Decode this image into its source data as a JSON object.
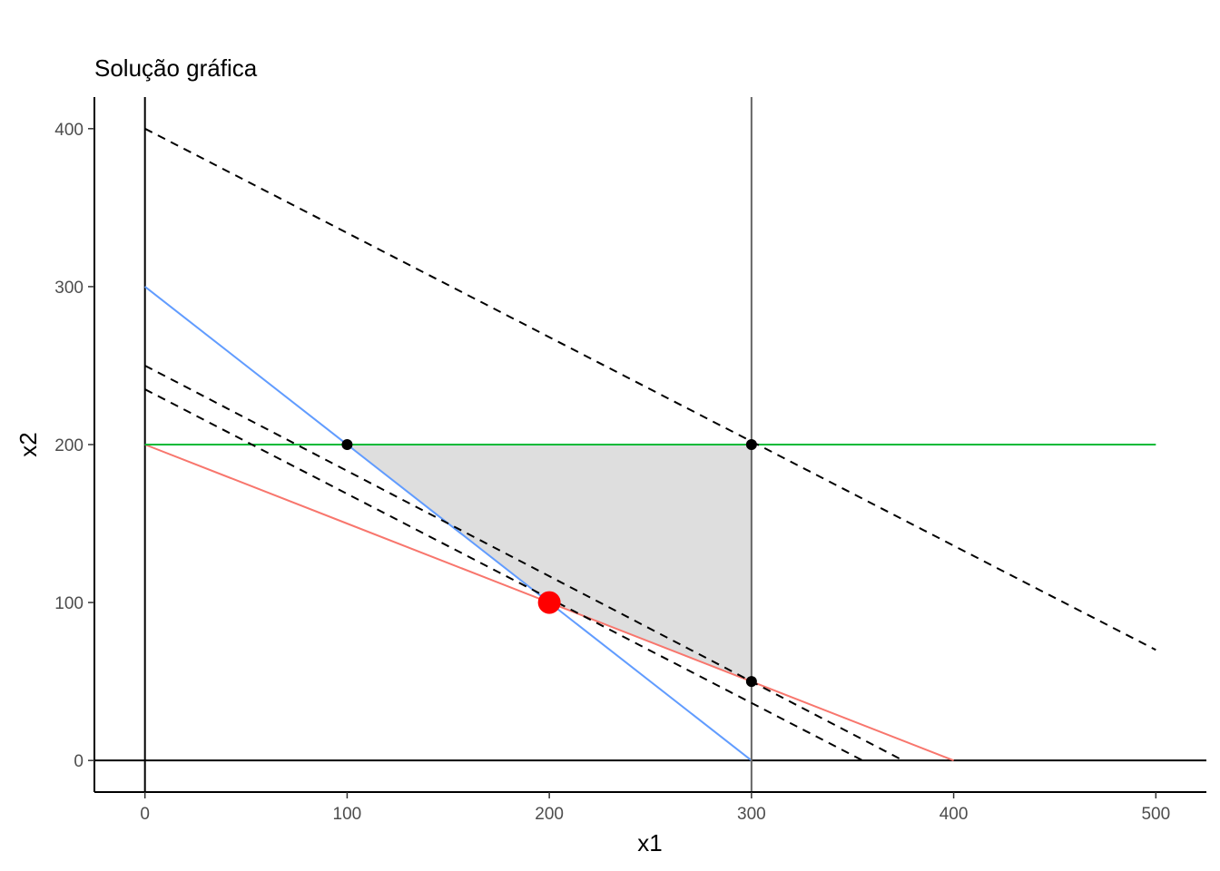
{
  "chart_data": {
    "type": "line",
    "title": "Solução gráfica",
    "xlabel": "x1",
    "ylabel": "x2",
    "xlim": [
      -25,
      525
    ],
    "ylim": [
      -20,
      420
    ],
    "x_ticks": [
      0,
      100,
      200,
      300,
      400,
      500
    ],
    "y_ticks": [
      0,
      100,
      200,
      300,
      400
    ],
    "grid": false,
    "legend": "none",
    "feasible_region": {
      "color": "#dedede",
      "vertices": [
        [
          100,
          200
        ],
        [
          300,
          200
        ],
        [
          300,
          50
        ],
        [
          200,
          100
        ]
      ]
    },
    "series": [
      {
        "points": [
          [
            0,
            300
          ],
          [
            300,
            0
          ]
        ],
        "color": "#619cff",
        "style": "solid"
      },
      {
        "points": [
          [
            0,
            200
          ],
          [
            400,
            0
          ]
        ],
        "color": "#f8766d",
        "style": "solid"
      },
      {
        "points": [
          [
            0,
            200
          ],
          [
            500,
            200
          ]
        ],
        "color": "#00ba38",
        "style": "solid"
      },
      {
        "points": [
          [
            300,
            -20
          ],
          [
            300,
            420
          ]
        ],
        "color": "#666666",
        "style": "solid"
      },
      {
        "points": [
          [
            0,
            400
          ],
          [
            500,
            70
          ]
        ],
        "color": "#000000",
        "style": "dashed"
      },
      {
        "points": [
          [
            0,
            250
          ],
          [
            375,
            0
          ]
        ],
        "color": "#000000",
        "style": "dashed"
      },
      {
        "points": [
          [
            0,
            235
          ],
          [
            355,
            0
          ]
        ],
        "color": "#000000",
        "style": "dashed"
      }
    ],
    "reference_lines": [
      {
        "orientation": "vertical",
        "x": 0,
        "color": "#000000"
      },
      {
        "orientation": "horizontal",
        "y": 0,
        "color": "#000000"
      }
    ],
    "vertex_points": [
      [
        100,
        200
      ],
      [
        300,
        200
      ],
      [
        300,
        50
      ]
    ],
    "optimal_point": {
      "x": 200,
      "y": 100,
      "color": "#ff0000"
    }
  }
}
